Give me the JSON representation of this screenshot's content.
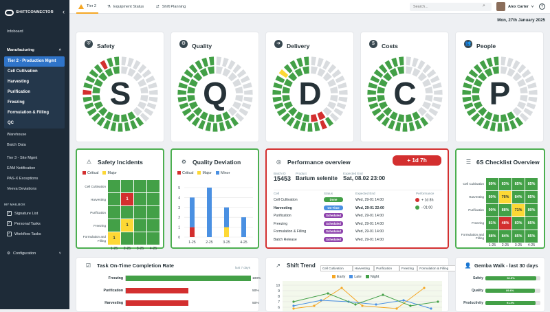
{
  "brand": {
    "name": "SHIFTCONNECTOR"
  },
  "sidebar": {
    "top_item": "Infoboard",
    "section": "Manufacturing",
    "sub_items": [
      "Tier 2 - Production Mgmt",
      "Cell Cultivation",
      "Harvesting",
      "Purification",
      "Freezing",
      "Formulation & Filling",
      "QC"
    ],
    "items_after": [
      "Warehouse",
      "Batch Data",
      "Tier 3 - Site Mgmt",
      "EAM Notification",
      "PAS-X Exceptions",
      "Veeva Deviations"
    ],
    "mailbox_title": "MY MAILBOX",
    "mailbox": [
      "Signature List",
      "Personal Tasks",
      "Workflow Tasks"
    ],
    "configuration": "Configuration"
  },
  "topbar": {
    "tabs": [
      "Tier 2",
      "Equipment Status",
      "Shift Planning"
    ],
    "search_placeholder": "Search...",
    "user": "Alex Carter",
    "help": "?"
  },
  "date": "Mon, 27th January 2025",
  "sqdcp": [
    {
      "title": "Safety",
      "letter": "S",
      "icon": "shield-icon",
      "segments": "gggggggggggggggggggggggrggggrgggggggggggggggggggggggggggggggggggggyyyyyyyyyyyyyyyy"
    },
    {
      "title": "Quality",
      "letter": "Q",
      "icon": "gear-icon",
      "segments": "ggggggggggggggggggggggggggggggggggggggggggggggggggggggggggggggggg"
    },
    {
      "title": "Delivery",
      "letter": "D",
      "icon": "truck-icon",
      "segments": "gggggggggggggrggggggggggggyggggggggggggrrgggggggggggggggg"
    },
    {
      "title": "Costs",
      "letter": "C",
      "icon": "coins-icon",
      "segments": "gggggggggggggggggggggggggggggggggggggggggggggggggggggggggg"
    },
    {
      "title": "People",
      "letter": "P",
      "icon": "people-icon",
      "segments": "gggggggggggggggggggggggggggggggggggggggggggggggggggggggggggg"
    }
  ],
  "safety_incidents": {
    "title": "Safety Incidents",
    "legend": [
      "Critical",
      "Major"
    ],
    "rows": [
      "Cell Cultivation",
      "Harvesting",
      "Purification",
      "Freezing",
      "Formulation and Filling"
    ],
    "cols": [
      "1-25",
      "2-25",
      "3-25",
      "4-25"
    ],
    "cells": [
      [
        "g",
        "g",
        "g",
        "g"
      ],
      [
        "g",
        "r:1",
        "g",
        "g"
      ],
      [
        "g",
        "g",
        "g",
        "g"
      ],
      [
        "g",
        "y:1",
        "g",
        "g"
      ],
      [
        "y:1",
        "g",
        "g",
        "g"
      ]
    ]
  },
  "quality_deviation": {
    "title": "Quality Deviation",
    "legend": [
      "Critical",
      "Major",
      "Minor"
    ]
  },
  "chart_data": [
    {
      "type": "bar",
      "title": "Quality Deviation",
      "categories": [
        "1-25",
        "2-25",
        "3-25",
        "4-25"
      ],
      "ylim": [
        0,
        5
      ],
      "yticks": [
        0,
        1,
        2,
        3,
        4,
        5
      ],
      "series": [
        {
          "name": "Critical",
          "values": [
            1,
            0,
            0,
            0
          ]
        },
        {
          "name": "Major",
          "values": [
            0,
            0,
            1,
            0
          ]
        },
        {
          "name": "Minor",
          "values": [
            3,
            5,
            2,
            2
          ]
        }
      ]
    },
    {
      "type": "bar",
      "title": "Task On-Time Completion Rate",
      "categories": [
        "Freezing",
        "Purification",
        "Harvesting"
      ],
      "values": [
        100,
        50,
        50
      ],
      "ylim": [
        0,
        100
      ]
    },
    {
      "type": "line",
      "title": "Shift Trend",
      "legend": [
        "Early",
        "Late",
        "Night"
      ],
      "yticks": [
        6,
        7,
        8,
        9,
        10
      ]
    },
    {
      "type": "bar",
      "title": "Gemba Walk - last 30 days",
      "categories": [
        "Safety",
        "Quality",
        "Productivity"
      ],
      "values": [
        92.5,
        89.6,
        91.3
      ]
    }
  ],
  "performance": {
    "title": "Performance overview",
    "badge": "+ 1d 7h",
    "batch_id_label": "Batch ID",
    "batch_id": "15453",
    "product_label": "Product",
    "product": "Barium selenite",
    "end_label": "Expected End",
    "end": "Sat, 08.02 23:00",
    "col_cell": "Cell",
    "col_status": "Status",
    "col_end": "Expected End",
    "col_perf": "Performance",
    "rows": [
      {
        "cell": "Cell Cultivation",
        "status": "Done",
        "end": "Wed, 29-01 14:00"
      },
      {
        "cell": "Harvesting",
        "status": "On-Time",
        "end": "Wed, 29-01 22:00"
      },
      {
        "cell": "Purification",
        "status": "Scheduled",
        "end": "Wed, 29-01 14:00"
      },
      {
        "cell": "Freezing",
        "status": "Scheduled",
        "end": "Wed, 29-01 14:00"
      },
      {
        "cell": "Formulation & Filling",
        "status": "Scheduled",
        "end": "Wed, 29-01 14:00"
      },
      {
        "cell": "Batch Release",
        "status": "Scheduled",
        "end": "Wed, 29-01 14:00"
      }
    ],
    "perf": [
      {
        "color": "#d32f2f",
        "text": "+ 1d 8h"
      },
      {
        "color": "#43a047",
        "text": "- 01:00"
      }
    ]
  },
  "checklist": {
    "title": "6S Checklist Overview",
    "rows": [
      "Cell Cultivation",
      "Harvesting",
      "Purification",
      "Freezing",
      "Formulation and Filling"
    ],
    "cols": [
      "1-25",
      "2-25",
      "3-25",
      "4-25"
    ],
    "cells": [
      [
        "89%",
        "83%",
        "85%",
        "85%"
      ],
      [
        "80%",
        "76%",
        "84%",
        "85%"
      ],
      [
        "90%",
        "88%",
        "71%",
        "80%"
      ],
      [
        "81%",
        "48%",
        "83%",
        "85%"
      ],
      [
        "88%",
        "84%",
        "85%",
        "85%"
      ]
    ],
    "colors": [
      [
        "g",
        "g",
        "g",
        "g"
      ],
      [
        "g",
        "y",
        "g",
        "g"
      ],
      [
        "g",
        "g",
        "y",
        "g"
      ],
      [
        "g",
        "r",
        "g",
        "g"
      ],
      [
        "g",
        "g",
        "g",
        "g"
      ]
    ]
  },
  "task_completion": {
    "title": "Task On-Time Completion Rate",
    "sub": "last 7 days",
    "rows": [
      {
        "label": "Freezing",
        "value": "100%"
      },
      {
        "label": "Purification",
        "value": "50%"
      },
      {
        "label": "Harvesting",
        "value": "50%"
      }
    ]
  },
  "shift_trend": {
    "title": "Shift Trend",
    "tabs": [
      "Cell Cultivation",
      "Harvesting",
      "Purification",
      "Freezing",
      "Formulation & Filling"
    ],
    "legend": [
      "Early",
      "Late",
      "Night"
    ],
    "yticks": [
      "10",
      "9",
      "8",
      "7",
      "6"
    ]
  },
  "gemba": {
    "title": "Gemba Walk - last 30 days",
    "rows": [
      {
        "label": "Safety",
        "value": "92.5%"
      },
      {
        "label": "Quality",
        "value": "89.6%"
      },
      {
        "label": "Productivity",
        "value": "91.3%"
      }
    ]
  },
  "colors": {
    "green": "#43a047",
    "red": "#d32f2f",
    "yellow": "#fdd835",
    "grey": "#d9dcdf",
    "blue": "#4a90e2",
    "accent": "#2f74c9"
  }
}
